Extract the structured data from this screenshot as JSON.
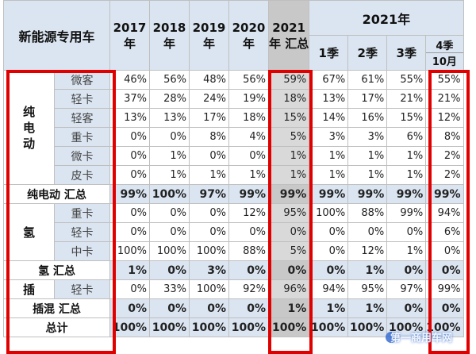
{
  "header": {
    "corner": "新能源专用车",
    "years": [
      "2017年",
      "2018年",
      "2019年",
      "2020年"
    ],
    "y2021_total": "2021年 汇总",
    "y2021_group": "2021年",
    "quarters": [
      "1季",
      "2季",
      "3季",
      "4季"
    ],
    "month": "10月"
  },
  "groups": {
    "bev": "纯电动",
    "hydrogen": "氢",
    "phev": "插"
  },
  "rows": [
    {
      "type": "微客",
      "v": [
        "46%",
        "56%",
        "48%",
        "56%",
        "59%",
        "67%",
        "61%",
        "55%",
        "55%"
      ]
    },
    {
      "type": "轻卡",
      "v": [
        "37%",
        "28%",
        "24%",
        "19%",
        "18%",
        "13%",
        "17%",
        "21%",
        "21%"
      ]
    },
    {
      "type": "轻客",
      "v": [
        "13%",
        "13%",
        "17%",
        "18%",
        "15%",
        "14%",
        "16%",
        "15%",
        "12%"
      ]
    },
    {
      "type": "重卡",
      "v": [
        "0%",
        "0%",
        "8%",
        "4%",
        "5%",
        "3%",
        "3%",
        "6%",
        "8%"
      ]
    },
    {
      "type": "微卡",
      "v": [
        "0%",
        "1%",
        "0%",
        "0%",
        "1%",
        "1%",
        "1%",
        "1%",
        "2%"
      ]
    },
    {
      "type": "皮卡",
      "v": [
        "0%",
        "1%",
        "1%",
        "1%",
        "1%",
        "1%",
        "1%",
        "1%",
        "2%"
      ]
    }
  ],
  "bev_total": {
    "label": "纯电动 汇总",
    "v": [
      "99%",
      "100%",
      "97%",
      "99%",
      "99%",
      "99%",
      "99%",
      "99%",
      "99%"
    ]
  },
  "h_rows": [
    {
      "type": "重卡",
      "v": [
        "0%",
        "0%",
        "0%",
        "12%",
        "95%",
        "100%",
        "88%",
        "99%",
        "94%"
      ]
    },
    {
      "type": "轻卡",
      "v": [
        "0%",
        "0%",
        "0%",
        "0%",
        "0%",
        "0%",
        "0%",
        "0%",
        "6%"
      ]
    },
    {
      "type": "中卡",
      "v": [
        "100%",
        "100%",
        "100%",
        "88%",
        "5%",
        "0%",
        "12%",
        "1%",
        "0%"
      ]
    }
  ],
  "h_total": {
    "label": "氢 汇总",
    "v": [
      "1%",
      "0%",
      "3%",
      "0%",
      "0%",
      "0%",
      "1%",
      "0%",
      "0%"
    ]
  },
  "p_row": {
    "type": "轻卡",
    "v": [
      "0%",
      "33%",
      "100%",
      "92%",
      "96%",
      "94%",
      "95%",
      "97%",
      "99%"
    ]
  },
  "p_total": {
    "label": "插混 汇总",
    "v": [
      "0%",
      "0%",
      "0%",
      "0%",
      "1%",
      "1%",
      "1%",
      "0%",
      "0%"
    ]
  },
  "grand": {
    "label": "总计",
    "v": [
      "100%",
      "100%",
      "100%",
      "100%",
      "100%",
      "100%",
      "100%",
      "100%",
      "100%"
    ]
  },
  "watermark": "第一商用车网",
  "colors": {
    "header_bg": "#dbe5f1",
    "highlight": "#d9d9d9",
    "red_box": "#e00000"
  }
}
